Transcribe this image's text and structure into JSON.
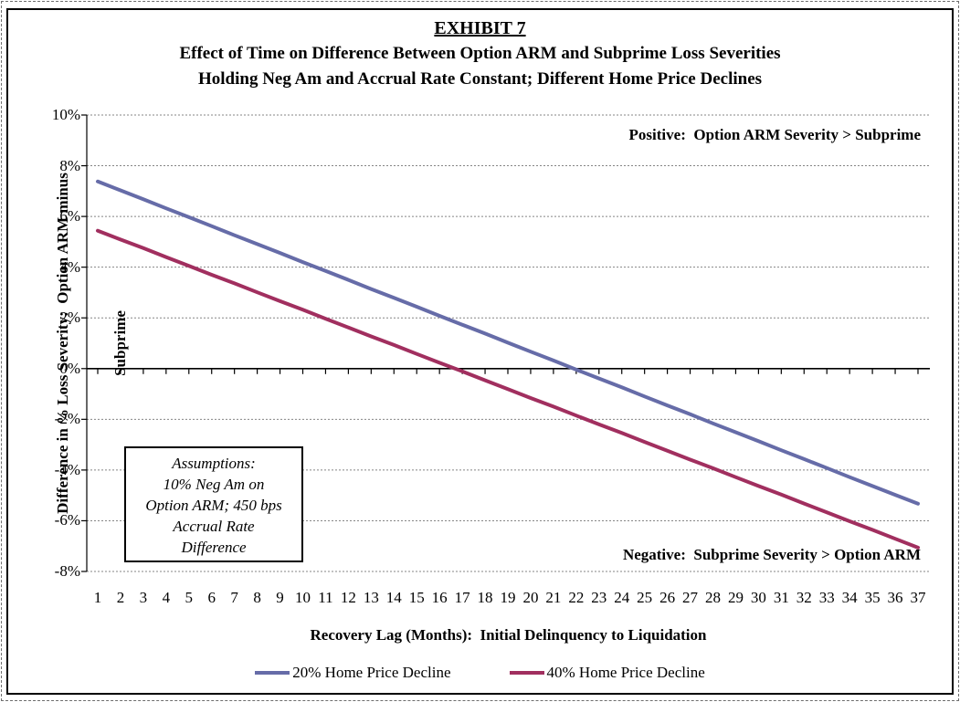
{
  "title": {
    "exhibit": "EXHIBIT 7",
    "line1": "Effect of Time on Difference Between Option ARM and Subprime Loss Severities",
    "line2": "Holding Neg Am and Accrual Rate Constant; Different Home Price Declines"
  },
  "chart_data": {
    "type": "line",
    "title": "EXHIBIT 7 — Effect of Time on Difference Between Option ARM and Subprime Loss Severities",
    "xlabel": "Recovery Lag (Months):  Initial Delinquency to Liquidation",
    "ylabel": "Difference in % Loss Severity:  Option ARM minus Subprime",
    "ylabel_line1": "Difference in % Loss Severity:  Option ARM minus",
    "ylabel_line2": "Subprime",
    "x": [
      1,
      2,
      3,
      4,
      5,
      6,
      7,
      8,
      9,
      10,
      11,
      12,
      13,
      14,
      15,
      16,
      17,
      18,
      19,
      20,
      21,
      22,
      23,
      24,
      25,
      26,
      27,
      28,
      29,
      30,
      31,
      32,
      33,
      34,
      35,
      36,
      37
    ],
    "series": [
      {
        "name": "20% Home Price Decline",
        "color": "#666CA8",
        "values": [
          7.38,
          7.03,
          6.68,
          6.32,
          5.97,
          5.62,
          5.26,
          4.91,
          4.56,
          4.2,
          3.85,
          3.5,
          3.14,
          2.79,
          2.44,
          2.08,
          1.73,
          1.38,
          1.02,
          0.67,
          0.32,
          -0.04,
          -0.39,
          -0.74,
          -1.1,
          -1.45,
          -1.8,
          -2.16,
          -2.51,
          -2.86,
          -3.22,
          -3.57,
          -3.92,
          -4.28,
          -4.63,
          -4.98,
          -5.33
        ]
      },
      {
        "name": "40% Home Price Decline",
        "color": "#A12F5F",
        "values": [
          5.44,
          5.09,
          4.75,
          4.4,
          4.05,
          3.7,
          3.36,
          3.01,
          2.66,
          2.32,
          1.97,
          1.62,
          1.27,
          0.93,
          0.58,
          0.23,
          -0.11,
          -0.46,
          -0.81,
          -1.16,
          -1.5,
          -1.85,
          -2.2,
          -2.54,
          -2.89,
          -3.24,
          -3.59,
          -3.93,
          -4.28,
          -4.63,
          -4.97,
          -5.32,
          -5.67,
          -6.02,
          -6.36,
          -6.71,
          -7.06
        ]
      }
    ],
    "ylim": [
      -8,
      10
    ],
    "y_tick_values": [
      10,
      8,
      6,
      4,
      2,
      0,
      -2,
      -4,
      -6,
      -8
    ],
    "y_tick_labels": [
      "10%",
      "8%",
      "6%",
      "4%",
      "2%",
      "0%",
      "-2%",
      "-4%",
      "-6%",
      "-8%"
    ],
    "grid": "horizontal-dashed",
    "legend_position": "bottom",
    "units": "percent"
  },
  "annotations": {
    "positive": "Positive:  Option ARM Severity > Subprime",
    "negative": "Negative:  Subprime Severity > Option ARM",
    "assumptions": [
      "Assumptions:",
      "10% Neg Am on",
      "Option ARM; 450 bps",
      "Accrual Rate",
      "Difference"
    ]
  },
  "legend": {
    "items": [
      {
        "label": "20% Home Price Decline",
        "color": "#666CA8"
      },
      {
        "label": "40% Home Price Decline",
        "color": "#A12F5F"
      }
    ]
  },
  "colors": {
    "series_20pct": "#666CA8",
    "series_40pct": "#A12F5F",
    "gridline": "#858585",
    "axis": "#000000",
    "background": "#ffffff"
  }
}
